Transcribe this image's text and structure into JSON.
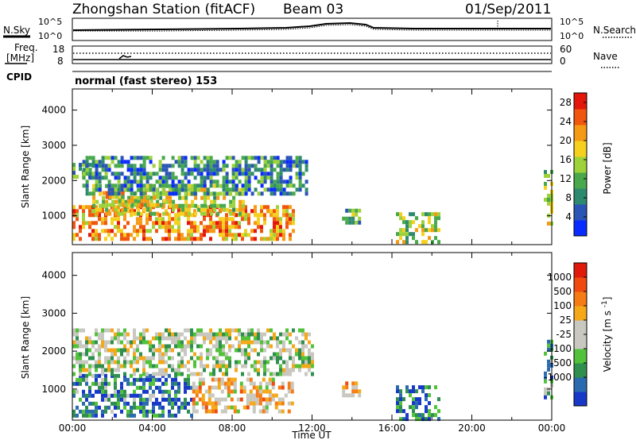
{
  "header": {
    "title": "Zhongshan Station (fitACF)",
    "beam": "Beam 03",
    "date": "01/Sep/2011"
  },
  "status_panels": {
    "nsky_label": "N.Sky",
    "nsky_ticks": [
      "10^5",
      "10^0"
    ],
    "nsearch_label": "N.Search",
    "nsearch_ticks": [
      "10^5",
      "10^0"
    ],
    "freq_label_1": "Freq.",
    "freq_label_2": "[MHz]",
    "freq_ticks": [
      "18",
      "8"
    ],
    "nave_label": "Nave",
    "nave_ticks": [
      "60",
      "0"
    ],
    "cpid_label": "CPID",
    "cpid_value": "normal (fast stereo) 153"
  },
  "chart_data": [
    {
      "type": "heatmap",
      "quantity": "Power",
      "ylabel": "Slant Range [km]",
      "xlabel": "",
      "xlim": [
        0,
        24
      ],
      "ylim": [
        180,
        4600
      ],
      "yticks": [
        "1000",
        "2000",
        "3000",
        "4000"
      ],
      "colorbar": {
        "label": "Power [dB]",
        "ticks": [
          "4",
          "8",
          "12",
          "16",
          "20",
          "24",
          "28"
        ],
        "range": [
          0,
          30
        ],
        "colors": [
          "#0a2bff",
          "#2a55b5",
          "#2e8a6e",
          "#48a84b",
          "#9ed23a",
          "#f5d01e",
          "#f59a14",
          "#f0560e",
          "#e4150a"
        ]
      },
      "regions": [
        {
          "t": [
            0.0,
            11.0
          ],
          "r": [
            350,
            1300
          ],
          "level": 0.72
        },
        {
          "t": [
            1.0,
            8.5
          ],
          "r": [
            1050,
            1900
          ],
          "level": 0.55
        },
        {
          "t": [
            1.5,
            5.0
          ],
          "r": [
            1350,
            1700
          ],
          "level": 0.6
        },
        {
          "t": [
            0.0,
            1.2
          ],
          "r": [
            2050,
            2500
          ],
          "level": 0.35
        },
        {
          "t": [
            0.5,
            11.8
          ],
          "r": [
            1600,
            2700
          ],
          "level": 0.28
        },
        {
          "t": [
            13.5,
            14.4
          ],
          "r": [
            800,
            1200
          ],
          "level": 0.35
        },
        {
          "t": [
            16.2,
            18.4
          ],
          "r": [
            200,
            1100
          ],
          "level": 0.5
        },
        {
          "t": [
            23.6,
            24.0
          ],
          "r": [
            800,
            2300
          ],
          "level": 0.5
        }
      ]
    },
    {
      "type": "heatmap",
      "quantity": "Velocity",
      "ylabel": "Slant Range [km]",
      "xlabel": "Time UT",
      "xlim": [
        0,
        24
      ],
      "ylim": [
        180,
        4600
      ],
      "xticks": [
        "00:00",
        "04:00",
        "08:00",
        "12:00",
        "16:00",
        "20:00",
        "00:00"
      ],
      "yticks": [
        "1000",
        "2000",
        "3000",
        "4000"
      ],
      "colorbar": {
        "label": "Velocity [m s^-1]",
        "ticks": [
          "1000",
          "500",
          "100",
          "25",
          "-25",
          "-100",
          "-500",
          "-1000"
        ],
        "colors": [
          "#1838c9",
          "#2a6bb0",
          "#2f8f4e",
          "#52c23a",
          "#c8c8c0",
          "#c8c8c0",
          "#f5a818",
          "#f57c14",
          "#f04a10",
          "#e01a0a"
        ]
      },
      "regions": [
        {
          "t": [
            0.0,
            6.0
          ],
          "r": [
            250,
            1400
          ],
          "level": 0.2
        },
        {
          "t": [
            6.0,
            11.0
          ],
          "r": [
            400,
            1300
          ],
          "level": 0.6
        },
        {
          "t": [
            0.0,
            12.0
          ],
          "r": [
            1400,
            2600
          ],
          "level": 0.45
        },
        {
          "t": [
            13.5,
            14.4
          ],
          "r": [
            800,
            1200
          ],
          "level": 0.6
        },
        {
          "t": [
            16.2,
            18.4
          ],
          "r": [
            200,
            1100
          ],
          "level": 0.15
        },
        {
          "t": [
            23.6,
            24.0
          ],
          "r": [
            800,
            2300
          ],
          "level": 0.3
        }
      ]
    }
  ]
}
